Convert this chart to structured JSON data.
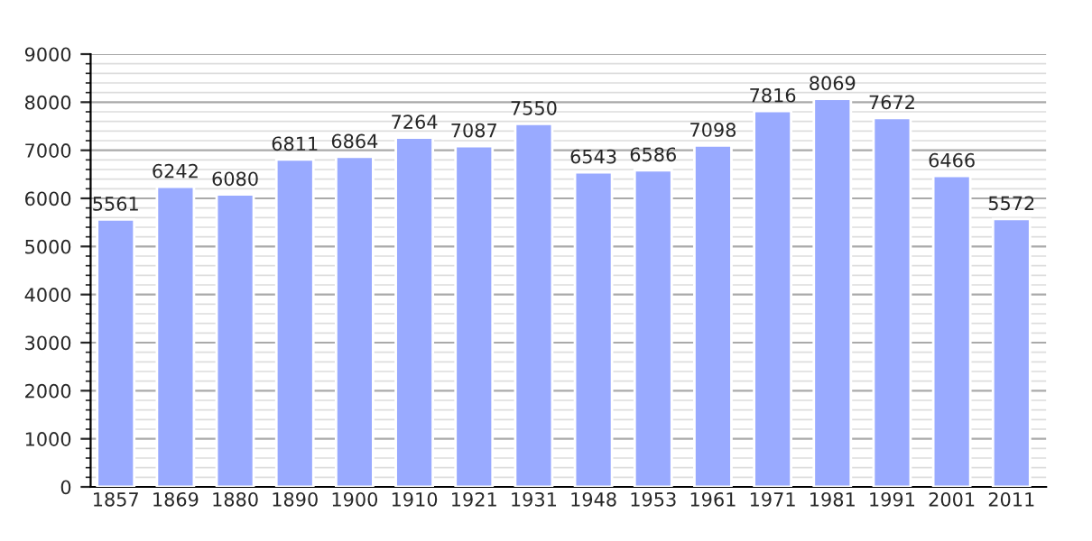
{
  "chart_data": {
    "type": "bar",
    "categories": [
      "1857",
      "1869",
      "1880",
      "1890",
      "1900",
      "1910",
      "1921",
      "1931",
      "1948",
      "1953",
      "1961",
      "1971",
      "1981",
      "1991",
      "2001",
      "2011"
    ],
    "values": [
      5561,
      6242,
      6080,
      6811,
      6864,
      7264,
      7087,
      7550,
      6543,
      6586,
      7098,
      7816,
      8069,
      7672,
      6466,
      5572
    ],
    "color": "#99aaff",
    "ylim": [
      0,
      9000
    ],
    "yticks": [
      0,
      1000,
      2000,
      3000,
      4000,
      5000,
      6000,
      7000,
      8000,
      9000
    ],
    "grid": "y",
    "data_labels": true
  }
}
